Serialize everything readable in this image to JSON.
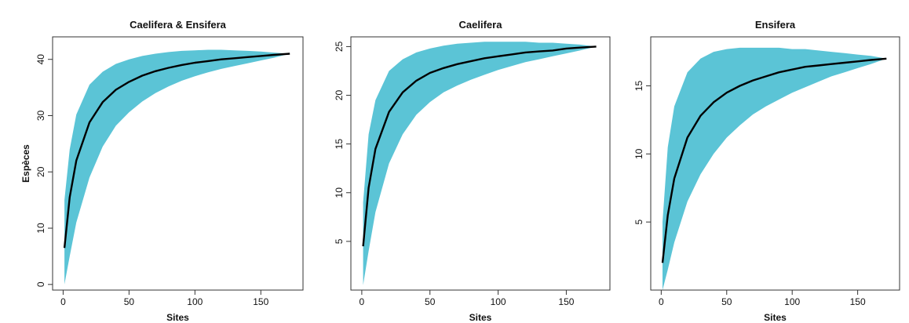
{
  "figure": {
    "colors": {
      "band": "#5bc4d6",
      "curve": "#000000",
      "frame": "#333333"
    }
  },
  "chart_data": [
    {
      "type": "area",
      "title": "Caelifera & Ensifera",
      "xlabel": "Sites",
      "ylabel": "Espèces",
      "xlim": [
        -8,
        182
      ],
      "ylim": [
        -1,
        44
      ],
      "xticks": [
        0,
        50,
        100,
        150
      ],
      "yticks": [
        0,
        10,
        20,
        30,
        40
      ],
      "grid": false,
      "x": [
        1,
        5,
        10,
        20,
        30,
        40,
        50,
        60,
        70,
        80,
        90,
        100,
        110,
        120,
        130,
        140,
        150,
        160,
        172
      ],
      "series": [
        {
          "role": "mean",
          "values": [
            6.5,
            15.5,
            22,
            28.8,
            32.4,
            34.6,
            36,
            37.1,
            37.9,
            38.5,
            39,
            39.4,
            39.7,
            40,
            40.2,
            40.4,
            40.6,
            40.8,
            41
          ]
        },
        {
          "role": "lower",
          "values": [
            0,
            5,
            11,
            19,
            24.5,
            28.2,
            30.6,
            32.5,
            34,
            35.2,
            36.2,
            37,
            37.7,
            38.3,
            38.8,
            39.3,
            39.8,
            40.3,
            41
          ]
        },
        {
          "role": "upper",
          "values": [
            15,
            24,
            30.2,
            35.5,
            37.8,
            39.2,
            40,
            40.6,
            41,
            41.3,
            41.5,
            41.6,
            41.7,
            41.7,
            41.6,
            41.5,
            41.4,
            41.2,
            41
          ]
        }
      ]
    },
    {
      "type": "area",
      "title": "Caelifera",
      "xlabel": "Sites",
      "ylabel": "",
      "xlim": [
        -8,
        182
      ],
      "ylim": [
        0,
        26
      ],
      "xticks": [
        0,
        50,
        100,
        150
      ],
      "yticks": [
        5,
        10,
        15,
        20,
        25
      ],
      "grid": false,
      "x": [
        1,
        5,
        10,
        20,
        30,
        40,
        50,
        60,
        70,
        80,
        90,
        100,
        110,
        120,
        130,
        140,
        150,
        160,
        172
      ],
      "series": [
        {
          "role": "mean",
          "values": [
            4.5,
            10.5,
            14.5,
            18.3,
            20.3,
            21.5,
            22.3,
            22.8,
            23.2,
            23.5,
            23.8,
            24,
            24.2,
            24.4,
            24.5,
            24.6,
            24.8,
            24.9,
            25
          ]
        },
        {
          "role": "lower",
          "values": [
            0.5,
            4,
            8,
            13,
            16,
            18,
            19.3,
            20.3,
            21,
            21.6,
            22.1,
            22.6,
            23,
            23.4,
            23.7,
            24,
            24.3,
            24.6,
            25
          ]
        },
        {
          "role": "upper",
          "values": [
            9,
            16,
            19.5,
            22.5,
            23.7,
            24.4,
            24.8,
            25.1,
            25.3,
            25.4,
            25.5,
            25.5,
            25.5,
            25.5,
            25.4,
            25.4,
            25.3,
            25.2,
            25
          ]
        }
      ]
    },
    {
      "type": "area",
      "title": "Ensifera",
      "xlabel": "Sites",
      "ylabel": "",
      "xlim": [
        -8,
        182
      ],
      "ylim": [
        0,
        18.6
      ],
      "xticks": [
        0,
        50,
        100,
        150
      ],
      "yticks": [
        5,
        10,
        15
      ],
      "grid": false,
      "x": [
        1,
        5,
        10,
        20,
        30,
        40,
        50,
        60,
        70,
        80,
        90,
        100,
        110,
        120,
        130,
        140,
        150,
        160,
        172
      ],
      "series": [
        {
          "role": "mean",
          "values": [
            2,
            5.5,
            8.2,
            11.2,
            12.8,
            13.8,
            14.5,
            15,
            15.4,
            15.7,
            16,
            16.2,
            16.4,
            16.5,
            16.6,
            16.7,
            16.8,
            16.9,
            17
          ]
        },
        {
          "role": "lower",
          "values": [
            0,
            1.5,
            3.5,
            6.5,
            8.5,
            10,
            11.2,
            12.1,
            12.9,
            13.5,
            14,
            14.5,
            14.9,
            15.3,
            15.7,
            16,
            16.3,
            16.6,
            17
          ]
        },
        {
          "role": "upper",
          "values": [
            5,
            10.5,
            13.5,
            16,
            17,
            17.5,
            17.7,
            17.8,
            17.8,
            17.8,
            17.8,
            17.7,
            17.7,
            17.6,
            17.5,
            17.4,
            17.3,
            17.2,
            17
          ]
        }
      ]
    }
  ]
}
